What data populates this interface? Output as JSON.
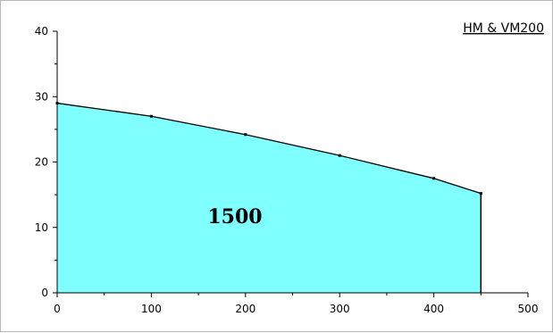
{
  "chart_data": {
    "type": "area",
    "title": "HM & VM200",
    "xlim": [
      0,
      500
    ],
    "ylim": [
      0,
      40
    ],
    "x_ticks": [
      0,
      100,
      200,
      300,
      400,
      500
    ],
    "y_ticks": [
      0,
      10,
      20,
      30,
      40
    ],
    "series": [
      {
        "x": [
          0,
          100,
          200,
          300,
          400,
          450
        ],
        "y": [
          29,
          27,
          24.2,
          21,
          17.5,
          15.2
        ]
      }
    ],
    "area_label": "1500",
    "colors": {
      "fill": "#80FFFF",
      "line": "#000000"
    },
    "grid": false
  }
}
